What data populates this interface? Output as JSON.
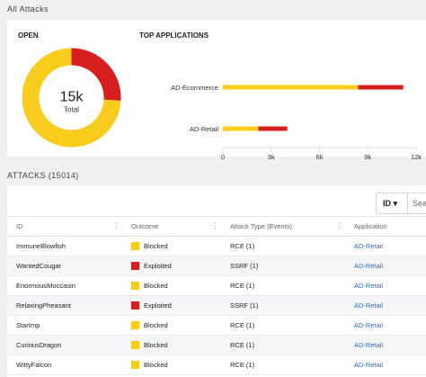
{
  "sections": {
    "all_attacks_title": "All Attacks",
    "attacks_title": "ATTACKS (15014)"
  },
  "open_panel": {
    "title": "OPEN",
    "center_value": "15k",
    "center_label": "Total",
    "colors": {
      "blocked": "#f7cc1c",
      "exploited": "#d81f1f"
    }
  },
  "top_apps_panel": {
    "title": "TOP APPLICATIONS"
  },
  "chart_data": [
    {
      "type": "pie",
      "values": [
        26,
        74
      ],
      "colors": [
        "#d81f1f",
        "#f7cc1c"
      ]
    },
    {
      "type": "bar",
      "orientation": "horizontal",
      "stacked": true,
      "categories": [
        "AD-Ecommerce",
        "AD-Retail"
      ],
      "series": [
        {
          "color": "#f7cc1c",
          "values": [
            8400,
            2200
          ]
        },
        {
          "color": "#d81f1f",
          "values": [
            2800,
            1800
          ]
        }
      ],
      "xlim": [
        0,
        12000
      ],
      "xticks": [
        "0",
        "3k",
        "6k",
        "9k",
        "12k"
      ],
      "grid": false
    }
  ],
  "filter": {
    "selected": "ID",
    "chevron_icon": "chevron-down-icon",
    "search_placeholder": "Search..."
  },
  "table": {
    "headers": [
      "ID",
      "Outcome",
      "Attack Type (Events)",
      "Application"
    ],
    "rows": [
      {
        "id": "ImmuneBlowfish",
        "outcome": "Blocked",
        "color": "#f7cc1c",
        "type": "RCE (1)",
        "app": "AD-Retail"
      },
      {
        "id": "WantedCougar",
        "outcome": "Exploited",
        "color": "#d81f1f",
        "type": "SSRF (1)",
        "app": "AD-Retail"
      },
      {
        "id": "EnormousMoccasin",
        "outcome": "Blocked",
        "color": "#f7cc1c",
        "type": "RCE (1)",
        "app": "AD-Retail"
      },
      {
        "id": "RelaxingPheasant",
        "outcome": "Exploited",
        "color": "#d81f1f",
        "type": "SSRF (1)",
        "app": "AD-Retail"
      },
      {
        "id": "StarImp",
        "outcome": "Blocked",
        "color": "#f7cc1c",
        "type": "RCE (1)",
        "app": "AD-Retail"
      },
      {
        "id": "CuriousDragon",
        "outcome": "Blocked",
        "color": "#f7cc1c",
        "type": "RCE (1)",
        "app": "AD-Retail"
      },
      {
        "id": "WittyFalcon",
        "outcome": "Blocked",
        "color": "#f7cc1c",
        "type": "RCE (1)",
        "app": "AD-Retail"
      }
    ]
  }
}
